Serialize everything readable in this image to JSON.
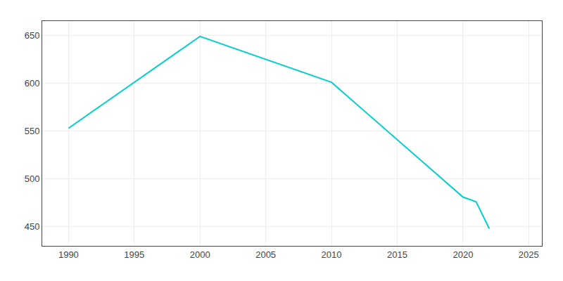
{
  "chart_data": {
    "type": "line",
    "x": [
      1990,
      2000,
      2010,
      2020,
      2021,
      2022
    ],
    "values": [
      553,
      649,
      601,
      481,
      476,
      448
    ],
    "color": "#00CED1",
    "xlim": [
      1988,
      2026
    ],
    "ylim": [
      430,
      665
    ],
    "xticks": [
      1990,
      1995,
      2000,
      2005,
      2010,
      2015,
      2020,
      2025
    ],
    "yticks": [
      450,
      500,
      550,
      600,
      650
    ],
    "grid": true
  }
}
